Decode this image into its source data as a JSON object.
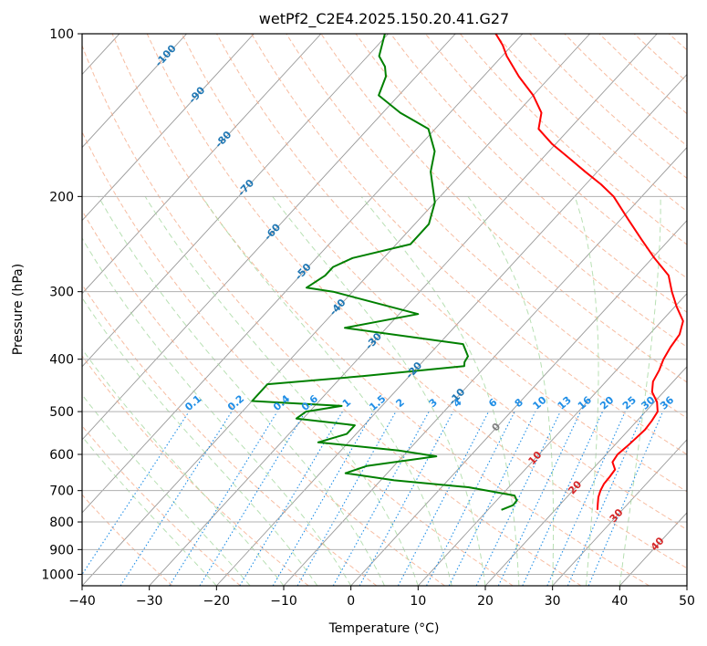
{
  "chart_data": {
    "type": "skew-t",
    "title": "wetPf2_C2E4.2025.150.20.41.G27",
    "xlabel": "Temperature (°C)",
    "ylabel": "Pressure (hPa)",
    "xlim": [
      -40,
      50
    ],
    "ylim": [
      1050,
      100
    ],
    "y_scale": "log",
    "x_ticks": [
      "−40",
      "−30",
      "−20",
      "−10",
      "0",
      "10",
      "20",
      "30",
      "40",
      "50"
    ],
    "y_ticks": [
      "100",
      "200",
      "300",
      "400",
      "500",
      "600",
      "700",
      "800",
      "900",
      "1000"
    ],
    "grid": true,
    "colors": {
      "temperature": "#ff0000",
      "dewpoint": "#008000",
      "isotherm": "#999999",
      "dry_adiabat": "#f4a582",
      "moist_adiabat": "#a6d8a0",
      "mixing_ratio": "#1f8ee6",
      "label_blue": "#1f77b4",
      "label_red": "#d62728"
    },
    "series": [
      {
        "name": "Temperature",
        "points": [
          [
            26.3,
            760
          ],
          [
            25.5,
            740
          ],
          [
            24.7,
            720
          ],
          [
            24.1,
            700
          ],
          [
            23.7,
            680
          ],
          [
            23.6,
            660
          ],
          [
            23.4,
            640
          ],
          [
            22.0,
            620
          ],
          [
            21.7,
            600
          ],
          [
            22.0,
            580
          ],
          [
            22.2,
            560
          ],
          [
            22.4,
            540
          ],
          [
            22.2,
            520
          ],
          [
            21.8,
            500
          ],
          [
            20.4,
            480
          ],
          [
            18.3,
            460
          ],
          [
            17.0,
            440
          ],
          [
            16.4,
            420
          ],
          [
            15.5,
            400
          ],
          [
            14.9,
            380
          ],
          [
            14.5,
            360
          ],
          [
            13.2,
            340
          ],
          [
            10.3,
            320
          ],
          [
            7.5,
            300
          ],
          [
            4.8,
            280
          ],
          [
            0.3,
            260
          ],
          [
            -4.2,
            240
          ],
          [
            -9.0,
            220
          ],
          [
            -14.2,
            200
          ],
          [
            -17.7,
            190
          ],
          [
            -21.8,
            180
          ],
          [
            -26.0,
            170
          ],
          [
            -30.5,
            160
          ],
          [
            -34.6,
            150
          ],
          [
            -36.4,
            140
          ],
          [
            -40.0,
            130
          ],
          [
            -44.7,
            120
          ],
          [
            -49.3,
            110
          ],
          [
            -51.4,
            105
          ],
          [
            -54.0,
            100
          ]
        ]
      },
      {
        "name": "Dewpoint",
        "points": [
          [
            12.0,
            760
          ],
          [
            13.1,
            745
          ],
          [
            13.0,
            730
          ],
          [
            12.0,
            715
          ],
          [
            4.0,
            690
          ],
          [
            -8.0,
            670
          ],
          [
            -16.2,
            650
          ],
          [
            -14.0,
            630
          ],
          [
            -5.0,
            605
          ],
          [
            -11.4,
            590
          ],
          [
            -24.5,
            570
          ],
          [
            -21.4,
            550
          ],
          [
            -21.4,
            530
          ],
          [
            -31.0,
            515
          ],
          [
            -30.5,
            500
          ],
          [
            -26.0,
            488
          ],
          [
            -40.0,
            478
          ],
          [
            -40.0,
            445
          ],
          [
            -27.0,
            430
          ],
          [
            -13.2,
            412
          ],
          [
            -13.7,
            405
          ],
          [
            -14.0,
            395
          ],
          [
            -16.4,
            375
          ],
          [
            -36.2,
            350
          ],
          [
            -27.2,
            330
          ],
          [
            -42.9,
            300
          ],
          [
            -47.4,
            295
          ],
          [
            -46.3,
            280
          ],
          [
            -46.3,
            270
          ],
          [
            -44.6,
            260
          ],
          [
            -37.9,
            245
          ],
          [
            -37.9,
            225
          ],
          [
            -40.0,
            205
          ],
          [
            -44.8,
            180
          ],
          [
            -47.0,
            165
          ],
          [
            -51.0,
            150
          ],
          [
            -57.4,
            140
          ],
          [
            -63.0,
            130
          ],
          [
            -64.5,
            120
          ],
          [
            -66.0,
            115
          ],
          [
            -68.3,
            110
          ],
          [
            -70.5,
            100
          ]
        ]
      }
    ],
    "isotherm_labels": [
      {
        "text": "-100",
        "t": -100,
        "p": 110
      },
      {
        "text": "-90",
        "t": -90,
        "p": 130
      },
      {
        "text": "-80",
        "t": -80,
        "p": 157
      },
      {
        "text": "-70",
        "t": -70,
        "p": 193
      },
      {
        "text": "-60",
        "t": -60,
        "p": 233
      },
      {
        "text": "-50",
        "t": -50,
        "p": 276
      },
      {
        "text": "-40",
        "t": -40,
        "p": 321
      },
      {
        "text": "-30",
        "t": -30,
        "p": 371
      },
      {
        "text": "-20",
        "t": -20,
        "p": 420
      },
      {
        "text": "-10",
        "t": -10,
        "p": 470
      }
    ],
    "isotherm_labels_gray": [
      {
        "text": "0",
        "t": 0,
        "p": 535
      }
    ],
    "isotherm_labels_red": [
      {
        "text": "10",
        "t": 10,
        "p": 610
      },
      {
        "text": "20",
        "t": 20,
        "p": 692
      },
      {
        "text": "30",
        "t": 30,
        "p": 780
      },
      {
        "text": "40",
        "t": 40,
        "p": 880
      }
    ],
    "mixing_ratio_labels": [
      "0.1",
      "0.2",
      "0.4",
      "0.6",
      "1",
      "1.5",
      "2",
      "3",
      "4",
      "6",
      "8",
      "10",
      "13",
      "16",
      "20",
      "25",
      "30",
      "36"
    ]
  }
}
